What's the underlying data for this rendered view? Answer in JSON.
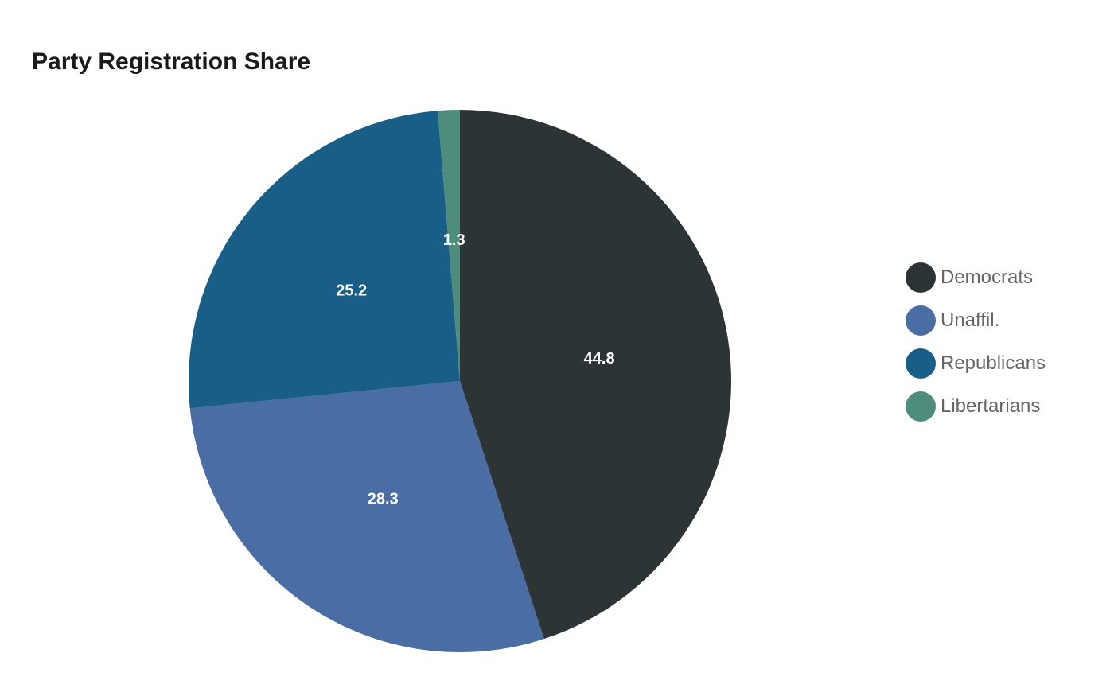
{
  "chart_data": {
    "type": "pie",
    "title": "Party Registration Share",
    "categories": [
      "Democrats",
      "Unaffil.",
      "Republicans",
      "Libertarians"
    ],
    "values": [
      44.8,
      28.3,
      25.2,
      1.3
    ],
    "value_labels": [
      "44.8",
      "28.3",
      "25.2",
      "1.3"
    ],
    "colors": [
      "#2d3436",
      "#4a6da3",
      "#185e86",
      "#4e8c7c"
    ],
    "start_angle_deg": 0,
    "direction": "clockwise",
    "legend_position": "right"
  }
}
